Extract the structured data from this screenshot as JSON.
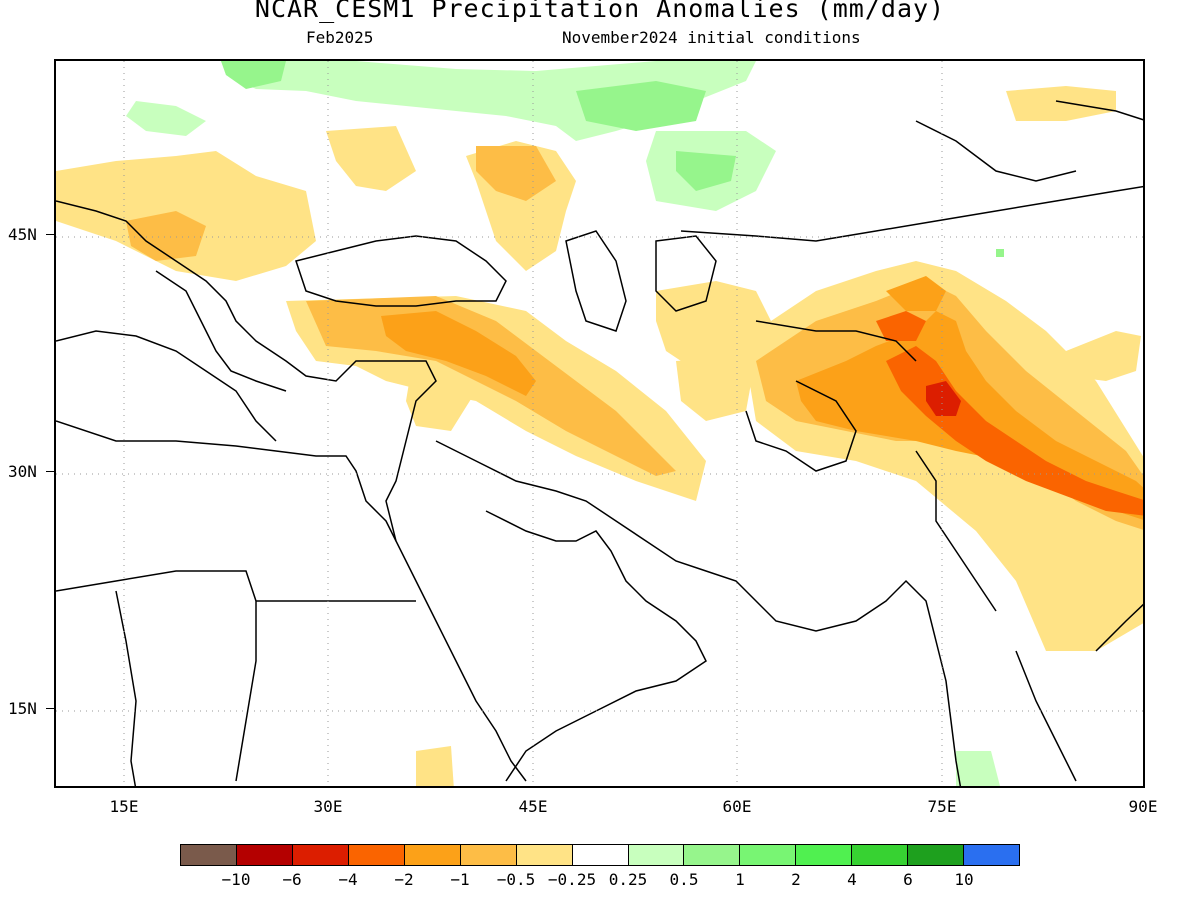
{
  "header": {
    "title": "NCAR_CESM1 Precipitation Anomalies (mm/day)",
    "valid_month": "Feb2025",
    "initial_conditions": "November2024 initial conditions"
  },
  "axes": {
    "lat_labels": [
      "45N",
      "30N",
      "15N"
    ],
    "lon_labels": [
      "15E",
      "30E",
      "45E",
      "60E",
      "75E",
      "90E"
    ]
  },
  "colorbar": {
    "colors": [
      "#7a5a4b",
      "#b40000",
      "#dc1e00",
      "#fa6400",
      "#fca118",
      "#fdbd46",
      "#ffe386",
      "#ffffff",
      "#c8ffbe",
      "#96f58c",
      "#78f573",
      "#50f050",
      "#37d232",
      "#1ea01e",
      "#2a6ff0"
    ],
    "labels": [
      "−10",
      "−6",
      "−4",
      "−2",
      "−1",
      "−0.5",
      "−0.25",
      "0.25",
      "0.5",
      "1",
      "2",
      "4",
      "6",
      "10"
    ]
  },
  "map": {
    "lon_range": [
      10,
      90
    ],
    "lat_range": [
      10,
      56
    ],
    "gridlines": "dotted"
  }
}
